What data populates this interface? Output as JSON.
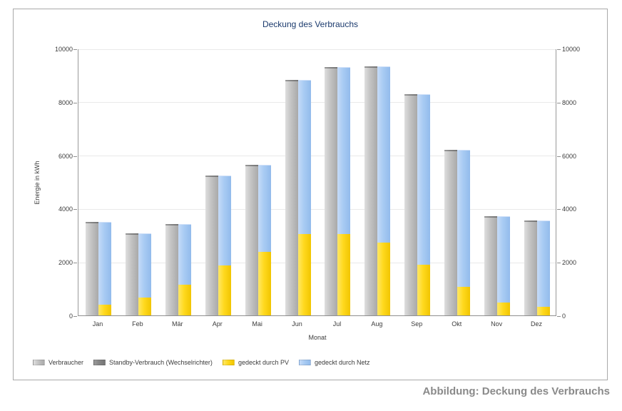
{
  "figure": {
    "caption": "Abbildung: Deckung des Verbrauchs"
  },
  "chart_data": {
    "type": "bar",
    "title": "Deckung des Verbrauchs",
    "xlabel": "Monat",
    "ylabel": "Energie in kWh",
    "ylim": [
      0,
      10000
    ],
    "yticks": [
      0,
      2000,
      4000,
      6000,
      8000,
      10000
    ],
    "grid": true,
    "legend_position": "bottom-left",
    "categories": [
      "Jan",
      "Feb",
      "Mär",
      "Apr",
      "Mai",
      "Jun",
      "Jul",
      "Aug",
      "Sep",
      "Okt",
      "Nov",
      "Dez"
    ],
    "series": [
      {
        "name": "Verbraucher",
        "role": "total-consumption-bar",
        "color": "#c3c3c3",
        "color_light": "#dedede",
        "color_dark": "#a9a9a9",
        "values": [
          3500,
          3070,
          3420,
          5230,
          5640,
          8820,
          9300,
          9330,
          8290,
          6200,
          3730,
          3550
        ]
      },
      {
        "name": "Standby-Verbrauch (Wechselrichter)",
        "role": "standby-cap-on-consumption-bar",
        "color": "#858585",
        "color_light": "#9a9a9a",
        "color_dark": "#757575",
        "values": [
          50,
          50,
          50,
          50,
          50,
          50,
          50,
          50,
          50,
          50,
          50,
          50
        ]
      },
      {
        "name": "gedeckt durch PV",
        "role": "stacked-bottom",
        "color": "#ffd91e",
        "color_light": "#ffe766",
        "color_dark": "#f1c500",
        "values": [
          400,
          680,
          1140,
          1870,
          2370,
          3040,
          3040,
          2720,
          1910,
          1080,
          470,
          310
        ]
      },
      {
        "name": "gedeckt durch Netz",
        "role": "stacked-top",
        "color": "#a8cbf3",
        "color_light": "#c5dbf8",
        "color_dark": "#93bbec",
        "values": [
          3100,
          2390,
          2280,
          3360,
          3270,
          5780,
          6260,
          6610,
          6380,
          5120,
          3260,
          3240
        ]
      }
    ]
  }
}
